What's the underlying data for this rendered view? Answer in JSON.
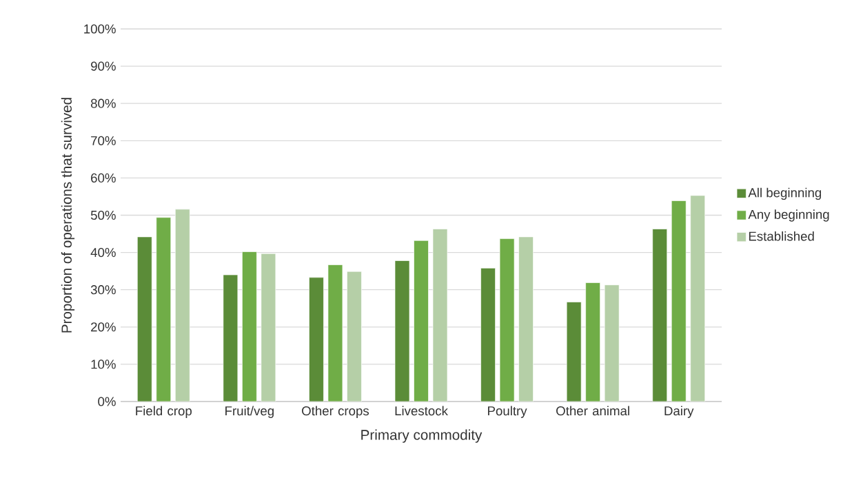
{
  "chart_data": {
    "type": "bar",
    "xlabel": "Primary commodity",
    "ylabel": "Proportion of operations that survived",
    "categories": [
      "Field crop",
      "Fruit/veg",
      "Other crops",
      "Livestock",
      "Poultry",
      "Other animal",
      "Dairy"
    ],
    "series": [
      {
        "name": "All beginning",
        "color": "#5b8c38",
        "values": [
          44.2,
          34.0,
          33.3,
          37.8,
          35.8,
          26.7,
          46.3
        ]
      },
      {
        "name": "Any beginning",
        "color": "#70ad47",
        "values": [
          49.4,
          40.2,
          36.7,
          43.2,
          43.7,
          31.9,
          53.9
        ]
      },
      {
        "name": "Established",
        "color": "#b5cfa7",
        "values": [
          51.6,
          39.7,
          34.9,
          46.3,
          44.2,
          31.3,
          55.3
        ]
      }
    ],
    "ylim": [
      0,
      100
    ],
    "yticks": [
      {
        "value": 0,
        "label": "0%"
      },
      {
        "value": 10,
        "label": "10%"
      },
      {
        "value": 20,
        "label": "20%"
      },
      {
        "value": 30,
        "label": "30%"
      },
      {
        "value": 40,
        "label": "40%"
      },
      {
        "value": 50,
        "label": "50%"
      },
      {
        "value": 60,
        "label": "60%"
      },
      {
        "value": 70,
        "label": "70%"
      },
      {
        "value": 80,
        "label": "80%"
      },
      {
        "value": 90,
        "label": "90%"
      },
      {
        "value": 100,
        "label": "100%"
      }
    ],
    "grid": "y",
    "legend": "right"
  }
}
